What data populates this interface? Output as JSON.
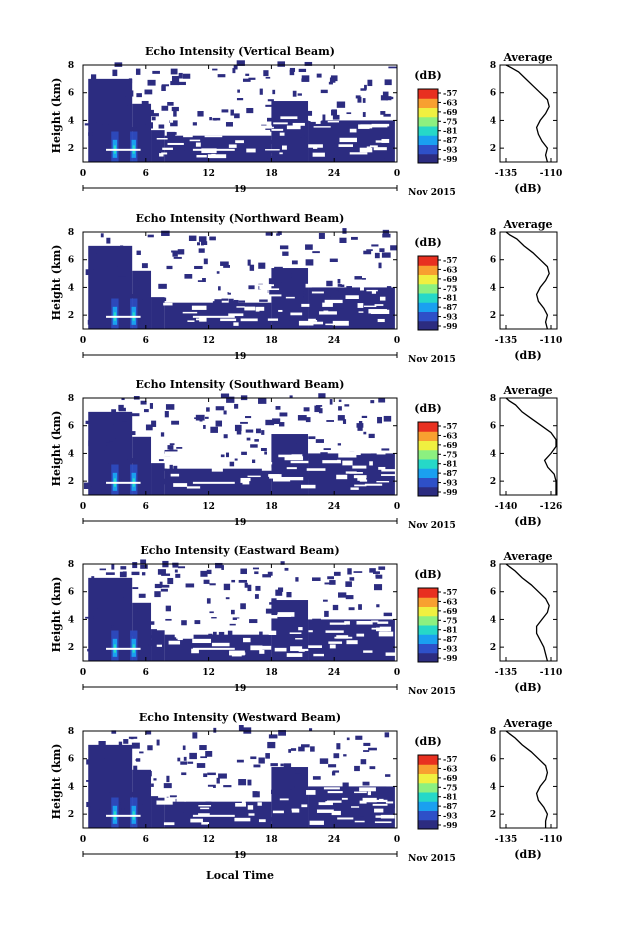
{
  "panels": [
    {
      "title": "Echo Intensity (Vertical Beam)",
      "avg_xticks": [
        "-135",
        "-110"
      ]
    },
    {
      "title": "Echo Intensity (Northward Beam)",
      "avg_xticks": [
        "-135",
        "-110"
      ]
    },
    {
      "title": "Echo Intensity (Southward Beam)",
      "avg_xticks": [
        "-140",
        "-126"
      ]
    },
    {
      "title": "Echo Intensity (Eastward Beam)",
      "avg_xticks": [
        "-135",
        "-110"
      ]
    },
    {
      "title": "Echo Intensity (Westward Beam)",
      "avg_xticks": [
        "-135",
        "-110"
      ]
    }
  ],
  "labels": {
    "ylabel": "Height (km)",
    "xlabel": "Local Time",
    "date_num": "19",
    "date_label": "Nov 2015",
    "cbar_unit": "(dB)",
    "avg_title": "Average",
    "avg_xlabel": "(dB)"
  },
  "colorbar_ticks": [
    "-57",
    "-63",
    "-69",
    "-75",
    "-81",
    "-87",
    "-93",
    "-99"
  ],
  "colors": {
    "echo_fill": "#2c2c80",
    "colormap": [
      "#2c2c80",
      "#2e50c8",
      "#1aa0f0",
      "#26d8c8",
      "#8cf080",
      "#f0f040",
      "#f8a030",
      "#e83020"
    ]
  },
  "chart_data": [
    {
      "type": "heatmap",
      "x_ticks": [
        "0",
        "6",
        "12",
        "18",
        "24",
        "0"
      ],
      "y_ticks": [
        "2",
        "4",
        "6",
        "8"
      ],
      "xlim": [
        0,
        30
      ],
      "ylim": [
        1,
        8
      ],
      "avg_profile": {
        "x": [
          -112,
          -113,
          -112,
          -115,
          -117,
          -118,
          -116,
          -113,
          -111,
          -112,
          -116,
          -120,
          -124,
          -128,
          -132,
          -135
        ],
        "y": [
          1,
          1.5,
          2,
          2.5,
          3,
          3.5,
          4,
          4.5,
          5,
          5.5,
          6,
          6.5,
          7,
          7.5,
          7.8,
          8
        ]
      }
    },
    {
      "type": "heatmap",
      "x_ticks": [
        "0",
        "6",
        "12",
        "18",
        "24",
        "0"
      ],
      "y_ticks": [
        "2",
        "4",
        "6",
        "8"
      ],
      "xlim": [
        0,
        30
      ],
      "ylim": [
        1,
        8
      ],
      "avg_profile": {
        "x": [
          -112,
          -113,
          -112,
          -114,
          -117,
          -118,
          -116,
          -113,
          -111,
          -112,
          -116,
          -120,
          -125,
          -129,
          -133,
          -135
        ],
        "y": [
          1,
          1.5,
          2,
          2.5,
          3,
          3.5,
          4,
          4.5,
          5,
          5.5,
          6,
          6.5,
          7,
          7.5,
          7.8,
          8
        ]
      }
    },
    {
      "type": "heatmap",
      "x_ticks": [
        "0",
        "6",
        "12",
        "18",
        "24",
        "0"
      ],
      "y_ticks": [
        "2",
        "4",
        "6",
        "8"
      ],
      "xlim": [
        0,
        30
      ],
      "ylim": [
        1,
        8
      ],
      "avg_profile": {
        "x": [
          -122,
          -122,
          -123,
          -125,
          -127,
          -128,
          -126,
          -124,
          -124,
          -126,
          -129,
          -132,
          -135,
          -137,
          -139,
          -140
        ],
        "y": [
          1,
          1.5,
          2,
          2.5,
          3,
          3.5,
          4,
          4.5,
          5,
          5.5,
          6,
          6.5,
          7,
          7.5,
          7.8,
          8
        ]
      }
    },
    {
      "type": "heatmap",
      "x_ticks": [
        "0",
        "6",
        "12",
        "18",
        "24",
        "0"
      ],
      "y_ticks": [
        "2",
        "4",
        "6",
        "8"
      ],
      "xlim": [
        0,
        30
      ],
      "ylim": [
        1,
        8
      ],
      "avg_profile": {
        "x": [
          -112,
          -113,
          -114,
          -116,
          -118,
          -118,
          -115,
          -112,
          -111,
          -113,
          -117,
          -121,
          -126,
          -130,
          -133,
          -135
        ],
        "y": [
          1,
          1.5,
          2,
          2.5,
          3,
          3.5,
          4,
          4.5,
          5,
          5.5,
          6,
          6.5,
          7,
          7.5,
          7.8,
          8
        ]
      }
    },
    {
      "type": "heatmap",
      "x_ticks": [
        "0",
        "6",
        "12",
        "18",
        "24",
        "0"
      ],
      "y_ticks": [
        "2",
        "4",
        "6",
        "8"
      ],
      "xlim": [
        0,
        30
      ],
      "ylim": [
        1,
        8
      ],
      "avg_profile": {
        "x": [
          -113,
          -113,
          -112,
          -114,
          -117,
          -118,
          -116,
          -113,
          -112,
          -113,
          -117,
          -121,
          -126,
          -130,
          -133,
          -135
        ],
        "y": [
          1,
          1.5,
          2,
          2.5,
          3,
          3.5,
          4,
          4.5,
          5,
          5.5,
          6,
          6.5,
          7,
          7.5,
          7.8,
          8
        ]
      }
    }
  ]
}
